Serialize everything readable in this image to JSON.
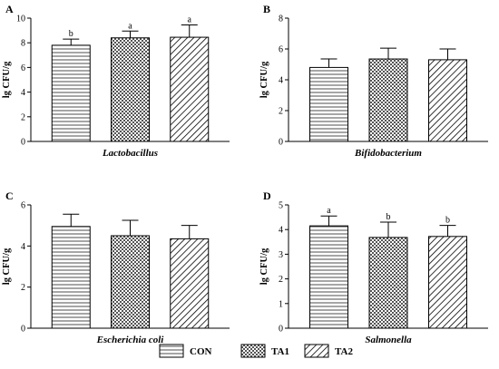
{
  "chart_data": [
    {
      "type": "bar",
      "panel": "A",
      "title": "",
      "xlabel": "Lactobacillus",
      "ylabel": "lg CFU/g",
      "ylim": [
        0,
        10
      ],
      "yticks": [
        0,
        2,
        4,
        6,
        8,
        10
      ],
      "categories": [
        "CON",
        "TA1",
        "TA2"
      ],
      "values": [
        7.8,
        8.4,
        8.45
      ],
      "errors": [
        0.5,
        0.55,
        1.0
      ],
      "significance": [
        "b",
        "a",
        "a"
      ]
    },
    {
      "type": "bar",
      "panel": "B",
      "title": "",
      "xlabel": "Bifidobacterium",
      "ylabel": "lg CFU/g",
      "ylim": [
        0,
        8
      ],
      "yticks": [
        0,
        2,
        4,
        6,
        8
      ],
      "categories": [
        "CON",
        "TA1",
        "TA2"
      ],
      "values": [
        4.8,
        5.35,
        5.3
      ],
      "errors": [
        0.55,
        0.7,
        0.7
      ],
      "significance": [
        "",
        "",
        ""
      ]
    },
    {
      "type": "bar",
      "panel": "C",
      "title": "",
      "xlabel": "Escherichia coli",
      "ylabel": "lg CFU/g",
      "ylim": [
        0,
        6
      ],
      "yticks": [
        0,
        2,
        4,
        6
      ],
      "categories": [
        "CON",
        "TA1",
        "TA2"
      ],
      "values": [
        4.95,
        4.5,
        4.35
      ],
      "errors": [
        0.6,
        0.75,
        0.65
      ],
      "significance": [
        "",
        "",
        ""
      ]
    },
    {
      "type": "bar",
      "panel": "D",
      "title": "",
      "xlabel": "Salmonella",
      "ylabel": "lg CFU/g",
      "ylim": [
        0,
        5
      ],
      "yticks": [
        0,
        1,
        2,
        3,
        4,
        5
      ],
      "categories": [
        "CON",
        "TA1",
        "TA2"
      ],
      "values": [
        4.15,
        3.68,
        3.72
      ],
      "errors": [
        0.4,
        0.62,
        0.45
      ],
      "significance": [
        "a",
        "b",
        "b"
      ]
    }
  ],
  "legend": {
    "items": [
      {
        "label": "CON",
        "pattern": "horizontal-lines"
      },
      {
        "label": "TA1",
        "pattern": "checkerboard"
      },
      {
        "label": "TA2",
        "pattern": "diagonal-lines"
      }
    ]
  },
  "colors": {
    "stroke": "#000000",
    "background": "#ffffff"
  }
}
